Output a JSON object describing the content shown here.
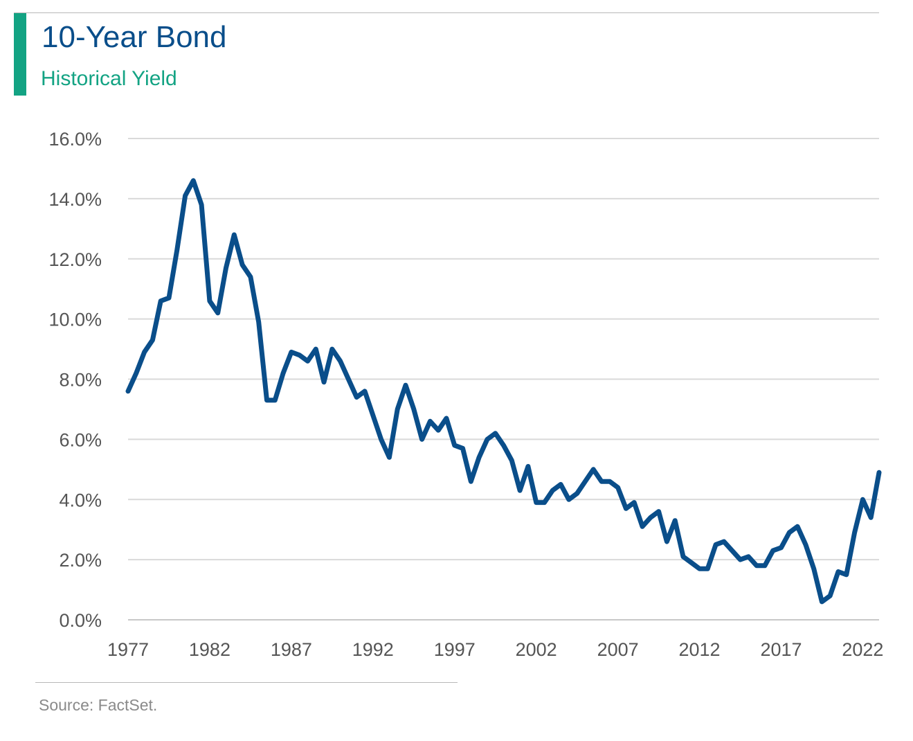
{
  "header": {
    "title": "10-Year Bond",
    "subtitle": "Historical Yield"
  },
  "footer": {
    "source": "Source: FactSet."
  },
  "colors": {
    "line": "#0a4e8a",
    "accent": "#13a383",
    "grid": "#d9d9d9"
  },
  "chart_data": {
    "type": "line",
    "title": "10-Year Bond",
    "subtitle": "Historical Yield",
    "xlabel": "",
    "ylabel": "",
    "xlim": [
      1977,
      2023
    ],
    "ylim": [
      0,
      16
    ],
    "grid": true,
    "y_ticks": [
      "0.0%",
      "2.0%",
      "4.0%",
      "6.0%",
      "8.0%",
      "10.0%",
      "12.0%",
      "14.0%",
      "16.0%"
    ],
    "y_tick_values": [
      0,
      2,
      4,
      6,
      8,
      10,
      12,
      14,
      16
    ],
    "x_ticks": [
      "1977",
      "1982",
      "1987",
      "1992",
      "1997",
      "2002",
      "2007",
      "2012",
      "2017",
      "2022"
    ],
    "x_tick_values": [
      1977,
      1982,
      1987,
      1992,
      1997,
      2002,
      2007,
      2012,
      2017,
      2022
    ],
    "series": [
      {
        "x": [
          1977.0,
          1977.5,
          1978.0,
          1978.5,
          1979.0,
          1979.5,
          1980.0,
          1980.5,
          1981.0,
          1981.5,
          1982.0,
          1982.5,
          1983.0,
          1983.5,
          1984.0,
          1984.5,
          1985.0,
          1985.5,
          1986.0,
          1986.5,
          1987.0,
          1987.5,
          1988.0,
          1988.5,
          1989.0,
          1989.5,
          1990.0,
          1990.5,
          1991.0,
          1991.5,
          1992.0,
          1992.5,
          1993.0,
          1993.5,
          1994.0,
          1994.5,
          1995.0,
          1995.5,
          1996.0,
          1996.5,
          1997.0,
          1997.5,
          1998.0,
          1998.5,
          1999.0,
          1999.5,
          2000.0,
          2000.5,
          2001.0,
          2001.5,
          2002.0,
          2002.5,
          2003.0,
          2003.5,
          2004.0,
          2004.5,
          2005.0,
          2005.5,
          2006.0,
          2006.5,
          2007.0,
          2007.5,
          2008.0,
          2008.5,
          2009.0,
          2009.5,
          2010.0,
          2010.5,
          2011.0,
          2011.5,
          2012.0,
          2012.5,
          2013.0,
          2013.5,
          2014.0,
          2014.5,
          2015.0,
          2015.5,
          2016.0,
          2016.5,
          2017.0,
          2017.5,
          2018.0,
          2018.5,
          2019.0,
          2019.5,
          2020.0,
          2020.5,
          2021.0,
          2021.5,
          2022.0,
          2022.5,
          2023.0
        ],
        "values": [
          7.6,
          8.2,
          8.9,
          9.3,
          10.6,
          10.7,
          12.3,
          14.1,
          14.6,
          13.8,
          10.6,
          10.2,
          11.7,
          12.8,
          11.8,
          11.4,
          9.9,
          7.3,
          7.3,
          8.2,
          8.9,
          8.8,
          8.6,
          9.0,
          7.9,
          9.0,
          8.6,
          8.0,
          7.4,
          7.6,
          6.8,
          6.0,
          5.4,
          7.0,
          7.8,
          7.0,
          6.0,
          6.6,
          6.3,
          6.7,
          5.8,
          5.7,
          4.6,
          5.4,
          6.0,
          6.2,
          5.8,
          5.3,
          4.3,
          5.1,
          3.9,
          3.9,
          4.3,
          4.5,
          4.0,
          4.2,
          4.6,
          5.0,
          4.6,
          4.6,
          4.4,
          3.7,
          3.9,
          3.1,
          3.4,
          3.6,
          2.6,
          3.3,
          2.1,
          1.9,
          1.7,
          1.7,
          2.5,
          2.6,
          2.3,
          2.0,
          2.1,
          1.8,
          1.8,
          2.3,
          2.4,
          2.9,
          3.1,
          2.5,
          1.7,
          0.6,
          0.8,
          1.6,
          1.5,
          2.9,
          4.0,
          3.4,
          4.9
        ]
      }
    ]
  }
}
